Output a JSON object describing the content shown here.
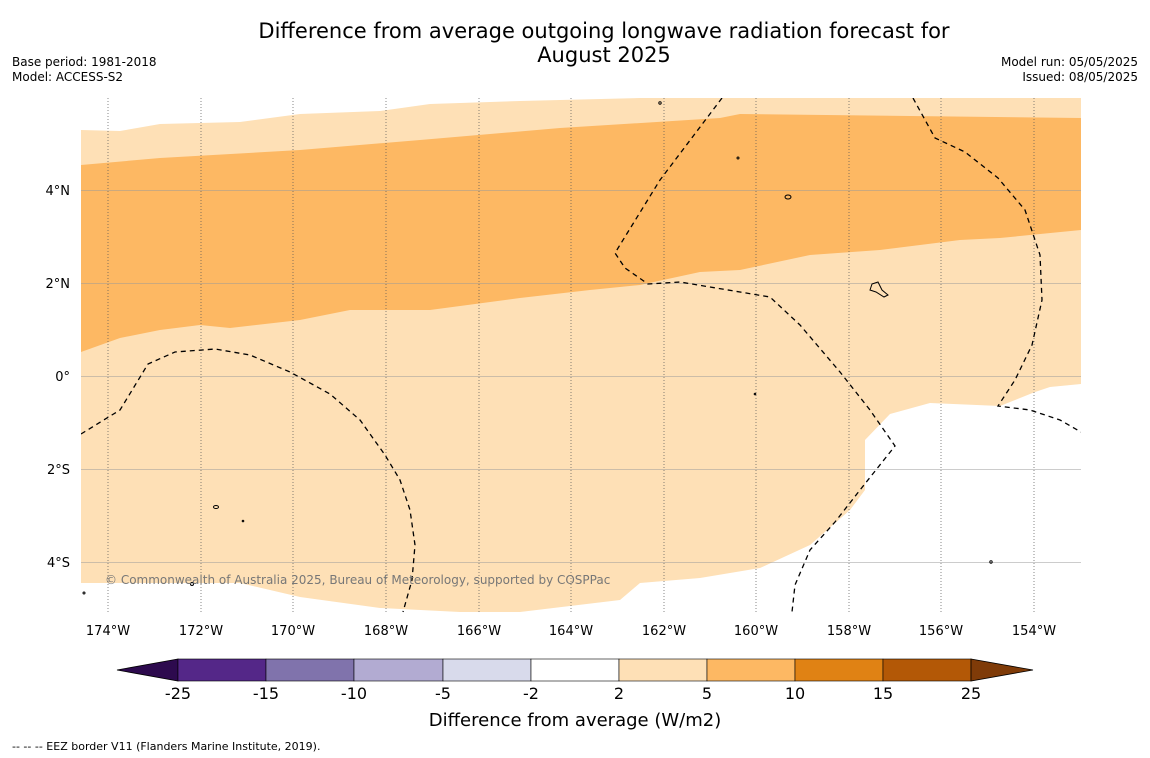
{
  "title_line1": "Difference from average outgoing longwave radiation forecast for",
  "title_line2": "August 2025",
  "base_period": "Base period: 1981-2018",
  "model": "Model: ACCESS-S2",
  "model_run": "Model run: 05/05/2025",
  "issued": "Issued: 08/05/2025",
  "copyright": "© Commonwealth of Australia 2025, Bureau of Meteorology, supported by COSPPac",
  "footer": "--  --  -- EEZ border V11 (Flanders Marine Institute, 2019).",
  "map": {
    "lon_labels": [
      "174°W",
      "172°W",
      "170°W",
      "168°W",
      "166°W",
      "164°W",
      "162°W",
      "160°W",
      "158°W",
      "156°W",
      "154°W"
    ],
    "lat_labels": [
      "4°N",
      "2°N",
      "0°",
      "2°S",
      "4°S"
    ]
  },
  "colorbar": {
    "label": "Difference from average (W/m2)",
    "ticks": [
      "-25",
      "-15",
      "-10",
      "-5",
      "-2",
      "2",
      "5",
      "10",
      "15",
      "25"
    ],
    "colors": [
      "#2d0a4e",
      "#542788",
      "#8073ac",
      "#b2abd2",
      "#d8daeb",
      "#ffffff",
      "#fee0b6",
      "#fdb863",
      "#e08214",
      "#b35806",
      "#7f3b08"
    ]
  }
}
